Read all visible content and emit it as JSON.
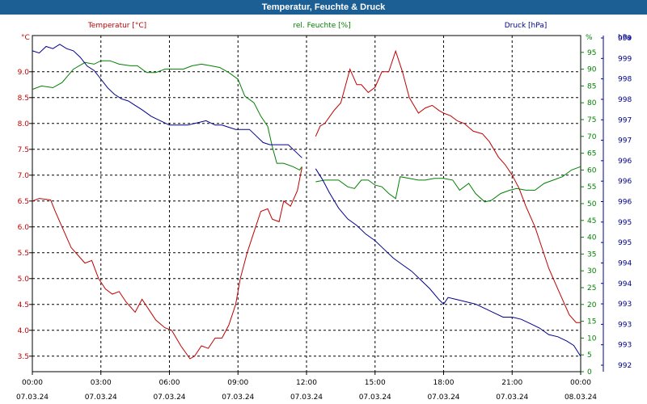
{
  "window": {
    "title": "Temperatur, Feuchte & Druck"
  },
  "chart_data": {
    "type": "line",
    "title": "Temperatur, Feuchte & Druck",
    "x_ticks": [
      {
        "time": "00:00",
        "date": "07.03.24"
      },
      {
        "time": "03:00",
        "date": "07.03.24"
      },
      {
        "time": "06:00",
        "date": "07.03.24"
      },
      {
        "time": "09:00",
        "date": "07.03.24"
      },
      {
        "time": "12:00",
        "date": "07.03.24"
      },
      {
        "time": "15:00",
        "date": "07.03.24"
      },
      {
        "time": "18:00",
        "date": "07.03.24"
      },
      {
        "time": "21:00",
        "date": "07.03.24"
      },
      {
        "time": "00:00",
        "date": "08.03.24"
      }
    ],
    "x_range_hours": [
      0,
      24
    ],
    "axes": {
      "temperature": {
        "unit": "°C",
        "label": "Temperatur [°C]",
        "range": [
          3.2,
          9.7
        ],
        "ticks": [
          3.5,
          4.0,
          4.5,
          5.0,
          5.5,
          6.0,
          6.5,
          7.0,
          7.5,
          8.0,
          8.5,
          9.0
        ],
        "color": "#c00000"
      },
      "humidity": {
        "unit": "%",
        "label": "rel. Feuchte [%]",
        "range": [
          0,
          100
        ],
        "ticks": [
          0,
          5,
          10,
          15,
          20,
          25,
          30,
          35,
          40,
          45,
          50,
          55,
          60,
          65,
          70,
          75,
          80,
          85,
          90,
          95
        ],
        "color": "#008000"
      },
      "pressure": {
        "unit": "hPa",
        "label": "Druck [hPa]",
        "range": [
          991.7,
          999.4
        ],
        "tick_labels": [
          "992",
          "993",
          "993",
          "993",
          "994",
          "994",
          "995",
          "995",
          "996",
          "996",
          "996",
          "997",
          "997",
          "998",
          "998",
          "999",
          "999"
        ],
        "color": "#00008b"
      }
    },
    "grid": true,
    "series": [
      {
        "name": "Temperatur [°C]",
        "axis": "temperature",
        "color": "#c00000",
        "segments": [
          [
            [
              0,
              6.5
            ],
            [
              0.3,
              6.55
            ],
            [
              0.8,
              6.52
            ],
            [
              1.0,
              6.3
            ],
            [
              1.3,
              6.0
            ],
            [
              1.7,
              5.6
            ],
            [
              2.0,
              5.45
            ],
            [
              2.3,
              5.3
            ],
            [
              2.6,
              5.35
            ],
            [
              2.9,
              5.0
            ],
            [
              3.2,
              4.8
            ],
            [
              3.5,
              4.7
            ],
            [
              3.8,
              4.75
            ],
            [
              4.1,
              4.55
            ],
            [
              4.5,
              4.35
            ],
            [
              4.8,
              4.6
            ],
            [
              5.1,
              4.4
            ],
            [
              5.4,
              4.2
            ],
            [
              5.8,
              4.05
            ],
            [
              6.1,
              4.0
            ],
            [
              6.5,
              3.7
            ],
            [
              6.9,
              3.45
            ],
            [
              7.1,
              3.5
            ],
            [
              7.4,
              3.7
            ],
            [
              7.7,
              3.65
            ],
            [
              8.0,
              3.85
            ],
            [
              8.3,
              3.85
            ],
            [
              8.6,
              4.1
            ],
            [
              8.9,
              4.5
            ],
            [
              9.1,
              5.0
            ],
            [
              9.4,
              5.5
            ],
            [
              9.7,
              5.9
            ],
            [
              10.0,
              6.3
            ],
            [
              10.3,
              6.35
            ],
            [
              10.5,
              6.15
            ],
            [
              10.8,
              6.1
            ],
            [
              11.0,
              6.5
            ],
            [
              11.3,
              6.4
            ],
            [
              11.6,
              6.7
            ],
            [
              11.8,
              7.15
            ]
          ],
          [
            [
              12.4,
              7.75
            ],
            [
              12.6,
              7.95
            ],
            [
              12.8,
              8.0
            ],
            [
              13.2,
              8.25
            ],
            [
              13.5,
              8.4
            ],
            [
              13.9,
              9.05
            ],
            [
              14.2,
              8.75
            ],
            [
              14.4,
              8.75
            ],
            [
              14.7,
              8.6
            ],
            [
              15.0,
              8.7
            ],
            [
              15.3,
              9.0
            ],
            [
              15.6,
              9.0
            ],
            [
              15.9,
              9.4
            ],
            [
              16.2,
              9.0
            ],
            [
              16.5,
              8.5
            ],
            [
              16.9,
              8.2
            ],
            [
              17.2,
              8.3
            ],
            [
              17.5,
              8.35
            ],
            [
              17.8,
              8.25
            ],
            [
              18.0,
              8.2
            ],
            [
              18.3,
              8.15
            ],
            [
              18.6,
              8.05
            ],
            [
              18.9,
              8.0
            ],
            [
              19.3,
              7.85
            ],
            [
              19.7,
              7.8
            ],
            [
              20.0,
              7.65
            ],
            [
              20.4,
              7.35
            ],
            [
              20.7,
              7.2
            ],
            [
              21.0,
              7.0
            ],
            [
              21.3,
              6.75
            ],
            [
              21.6,
              6.4
            ],
            [
              22.0,
              6.0
            ],
            [
              22.3,
              5.6
            ],
            [
              22.6,
              5.2
            ],
            [
              22.9,
              4.9
            ],
            [
              23.2,
              4.6
            ],
            [
              23.5,
              4.3
            ],
            [
              23.8,
              4.15
            ],
            [
              24.0,
              4.15
            ]
          ]
        ]
      },
      {
        "name": "rel. Feuchte [%]",
        "axis": "humidity",
        "color": "#008000",
        "segments": [
          [
            [
              0,
              84
            ],
            [
              0.4,
              85
            ],
            [
              0.9,
              84.5
            ],
            [
              1.3,
              86
            ],
            [
              1.8,
              90
            ],
            [
              2.3,
              92
            ],
            [
              2.7,
              91.5
            ],
            [
              3.0,
              92.5
            ],
            [
              3.4,
              92.5
            ],
            [
              3.8,
              91.5
            ],
            [
              4.3,
              91
            ],
            [
              4.6,
              91
            ],
            [
              5.0,
              89
            ],
            [
              5.4,
              89
            ],
            [
              5.8,
              90
            ],
            [
              6.2,
              90
            ],
            [
              6.6,
              90
            ],
            [
              7.0,
              91
            ],
            [
              7.4,
              91.5
            ],
            [
              7.8,
              91
            ],
            [
              8.2,
              90.5
            ],
            [
              8.6,
              89
            ],
            [
              9.0,
              87
            ],
            [
              9.3,
              82
            ],
            [
              9.7,
              80
            ],
            [
              10.0,
              76
            ],
            [
              10.3,
              73
            ],
            [
              10.5,
              67
            ],
            [
              10.7,
              62
            ],
            [
              11.0,
              62
            ],
            [
              11.4,
              61
            ],
            [
              11.7,
              60
            ],
            [
              11.8,
              61
            ]
          ],
          [
            [
              12.4,
              56.5
            ],
            [
              12.8,
              57
            ],
            [
              13.1,
              57
            ],
            [
              13.4,
              57
            ],
            [
              13.8,
              55
            ],
            [
              14.1,
              54.5
            ],
            [
              14.4,
              57
            ],
            [
              14.7,
              57
            ],
            [
              15.0,
              55.5
            ],
            [
              15.3,
              55
            ],
            [
              15.6,
              53
            ],
            [
              15.9,
              51.5
            ],
            [
              16.1,
              58
            ],
            [
              16.5,
              57.5
            ],
            [
              16.9,
              57
            ],
            [
              17.2,
              57
            ],
            [
              17.6,
              57.5
            ],
            [
              18.0,
              57.5
            ],
            [
              18.4,
              57
            ],
            [
              18.7,
              54
            ],
            [
              19.1,
              56
            ],
            [
              19.4,
              53
            ],
            [
              19.8,
              50.5
            ],
            [
              20.1,
              51
            ],
            [
              20.5,
              53
            ],
            [
              20.9,
              54
            ],
            [
              21.2,
              54.5
            ],
            [
              21.6,
              54
            ],
            [
              22.0,
              54
            ],
            [
              22.4,
              56
            ],
            [
              22.8,
              57
            ],
            [
              23.2,
              58
            ],
            [
              23.6,
              60
            ],
            [
              24.0,
              61
            ]
          ]
        ]
      },
      {
        "name": "Druck [hPa]",
        "axis": "pressure",
        "color": "#00008b",
        "segments": [
          [
            [
              0,
              999.05
            ],
            [
              0.3,
              999.0
            ],
            [
              0.6,
              999.15
            ],
            [
              0.9,
              999.1
            ],
            [
              1.2,
              999.2
            ],
            [
              1.5,
              999.1
            ],
            [
              1.8,
              999.05
            ],
            [
              2.1,
              998.9
            ],
            [
              2.4,
              998.7
            ],
            [
              2.7,
              998.6
            ],
            [
              3.0,
              998.4
            ],
            [
              3.3,
              998.2
            ],
            [
              3.6,
              998.05
            ],
            [
              3.9,
              997.95
            ],
            [
              4.2,
              997.9
            ],
            [
              4.5,
              997.8
            ],
            [
              4.8,
              997.7
            ],
            [
              5.2,
              997.55
            ],
            [
              5.6,
              997.45
            ],
            [
              6.0,
              997.35
            ],
            [
              6.4,
              997.35
            ],
            [
              6.8,
              997.35
            ],
            [
              7.2,
              997.4
            ],
            [
              7.6,
              997.45
            ],
            [
              8.0,
              997.35
            ],
            [
              8.3,
              997.35
            ],
            [
              8.6,
              997.3
            ],
            [
              8.9,
              997.25
            ],
            [
              9.2,
              997.25
            ],
            [
              9.5,
              997.25
            ],
            [
              9.8,
              997.1
            ],
            [
              10.1,
              996.95
            ],
            [
              10.4,
              996.9
            ],
            [
              10.8,
              996.9
            ],
            [
              11.2,
              996.9
            ],
            [
              11.5,
              996.75
            ],
            [
              11.8,
              996.6
            ]
          ],
          [
            [
              12.4,
              996.35
            ],
            [
              12.7,
              996.1
            ],
            [
              13.0,
              995.8
            ],
            [
              13.4,
              995.45
            ],
            [
              13.8,
              995.2
            ],
            [
              14.2,
              995.05
            ],
            [
              14.6,
              994.85
            ],
            [
              15.0,
              994.7
            ],
            [
              15.4,
              994.5
            ],
            [
              15.8,
              994.3
            ],
            [
              16.2,
              994.15
            ],
            [
              16.6,
              994.0
            ],
            [
              17.0,
              993.8
            ],
            [
              17.4,
              993.6
            ],
            [
              17.8,
              993.35
            ],
            [
              18.0,
              993.25
            ],
            [
              18.2,
              993.4
            ],
            [
              18.6,
              993.35
            ],
            [
              19.0,
              993.3
            ],
            [
              19.4,
              993.25
            ],
            [
              19.8,
              993.15
            ],
            [
              20.2,
              993.05
            ],
            [
              20.6,
              992.95
            ],
            [
              21.0,
              992.95
            ],
            [
              21.4,
              992.9
            ],
            [
              21.8,
              992.8
            ],
            [
              22.2,
              992.7
            ],
            [
              22.6,
              992.55
            ],
            [
              23.0,
              992.5
            ],
            [
              23.4,
              992.4
            ],
            [
              23.7,
              992.3
            ],
            [
              24.0,
              992.05
            ]
          ]
        ]
      }
    ]
  }
}
